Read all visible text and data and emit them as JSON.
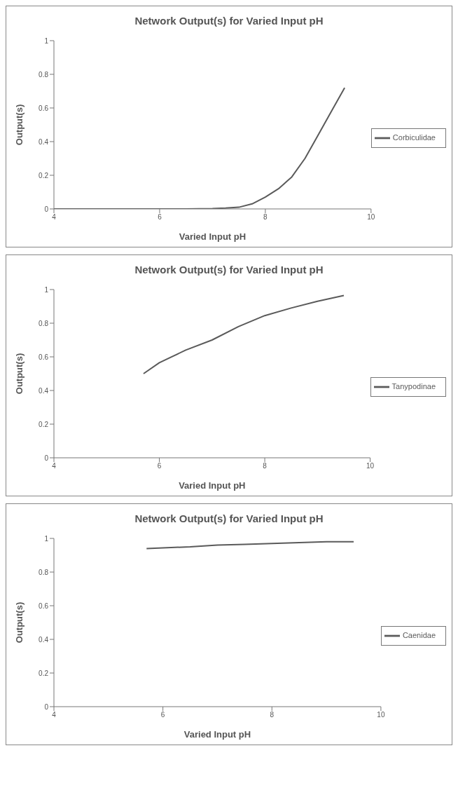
{
  "chart_data": [
    {
      "type": "line",
      "title": "Network Output(s) for Varied Input pH",
      "xlabel": "Varied Input pH",
      "ylabel": "Output(s)",
      "xlim": [
        4,
        10
      ],
      "xticks": [
        4,
        6,
        8,
        10
      ],
      "ylim": [
        0,
        1
      ],
      "yticks": [
        0,
        0.2,
        0.4,
        0.6,
        0.8,
        1
      ],
      "legend": "right",
      "series": [
        {
          "name": "Corbiculidae",
          "color": "#5a5a5a",
          "x": [
            4,
            5,
            6,
            6.5,
            7,
            7.25,
            7.5,
            7.75,
            8,
            8.25,
            8.5,
            8.75,
            9,
            9.25,
            9.5
          ],
          "values": [
            0,
            0,
            0,
            0,
            0.002,
            0.005,
            0.01,
            0.03,
            0.07,
            0.12,
            0.19,
            0.3,
            0.44,
            0.58,
            0.72
          ]
        }
      ]
    },
    {
      "type": "line",
      "title": "Network Output(s) for Varied Input pH",
      "xlabel": "Varied Input pH",
      "ylabel": "Output(s)",
      "xlim": [
        4,
        10
      ],
      "xticks": [
        4,
        6,
        8,
        10
      ],
      "ylim": [
        0,
        1
      ],
      "yticks": [
        0,
        0.2,
        0.4,
        0.6,
        0.8,
        1
      ],
      "legend": "right",
      "series": [
        {
          "name": "Tanypodinae",
          "color": "#5a5a5a",
          "x": [
            5.7,
            6,
            6.5,
            7,
            7.5,
            8,
            8.5,
            9,
            9.5
          ],
          "values": [
            0.5,
            0.565,
            0.64,
            0.7,
            0.78,
            0.845,
            0.89,
            0.93,
            0.965
          ]
        }
      ]
    },
    {
      "type": "line",
      "title": "Network Output(s) for Varied Input pH",
      "xlabel": "Varied Input pH",
      "ylabel": "Output(s)",
      "xlim": [
        4,
        10
      ],
      "xticks": [
        4,
        6,
        8,
        10
      ],
      "ylim": [
        0,
        1
      ],
      "yticks": [
        0,
        0.2,
        0.4,
        0.6,
        0.8,
        1
      ],
      "legend": "right",
      "series": [
        {
          "name": "Caenidae",
          "color": "#5a5a5a",
          "x": [
            5.7,
            6.5,
            7,
            7.5,
            8,
            8.5,
            9,
            9.5
          ],
          "values": [
            0.94,
            0.95,
            0.96,
            0.965,
            0.97,
            0.975,
            0.98,
            0.98
          ]
        }
      ]
    }
  ]
}
